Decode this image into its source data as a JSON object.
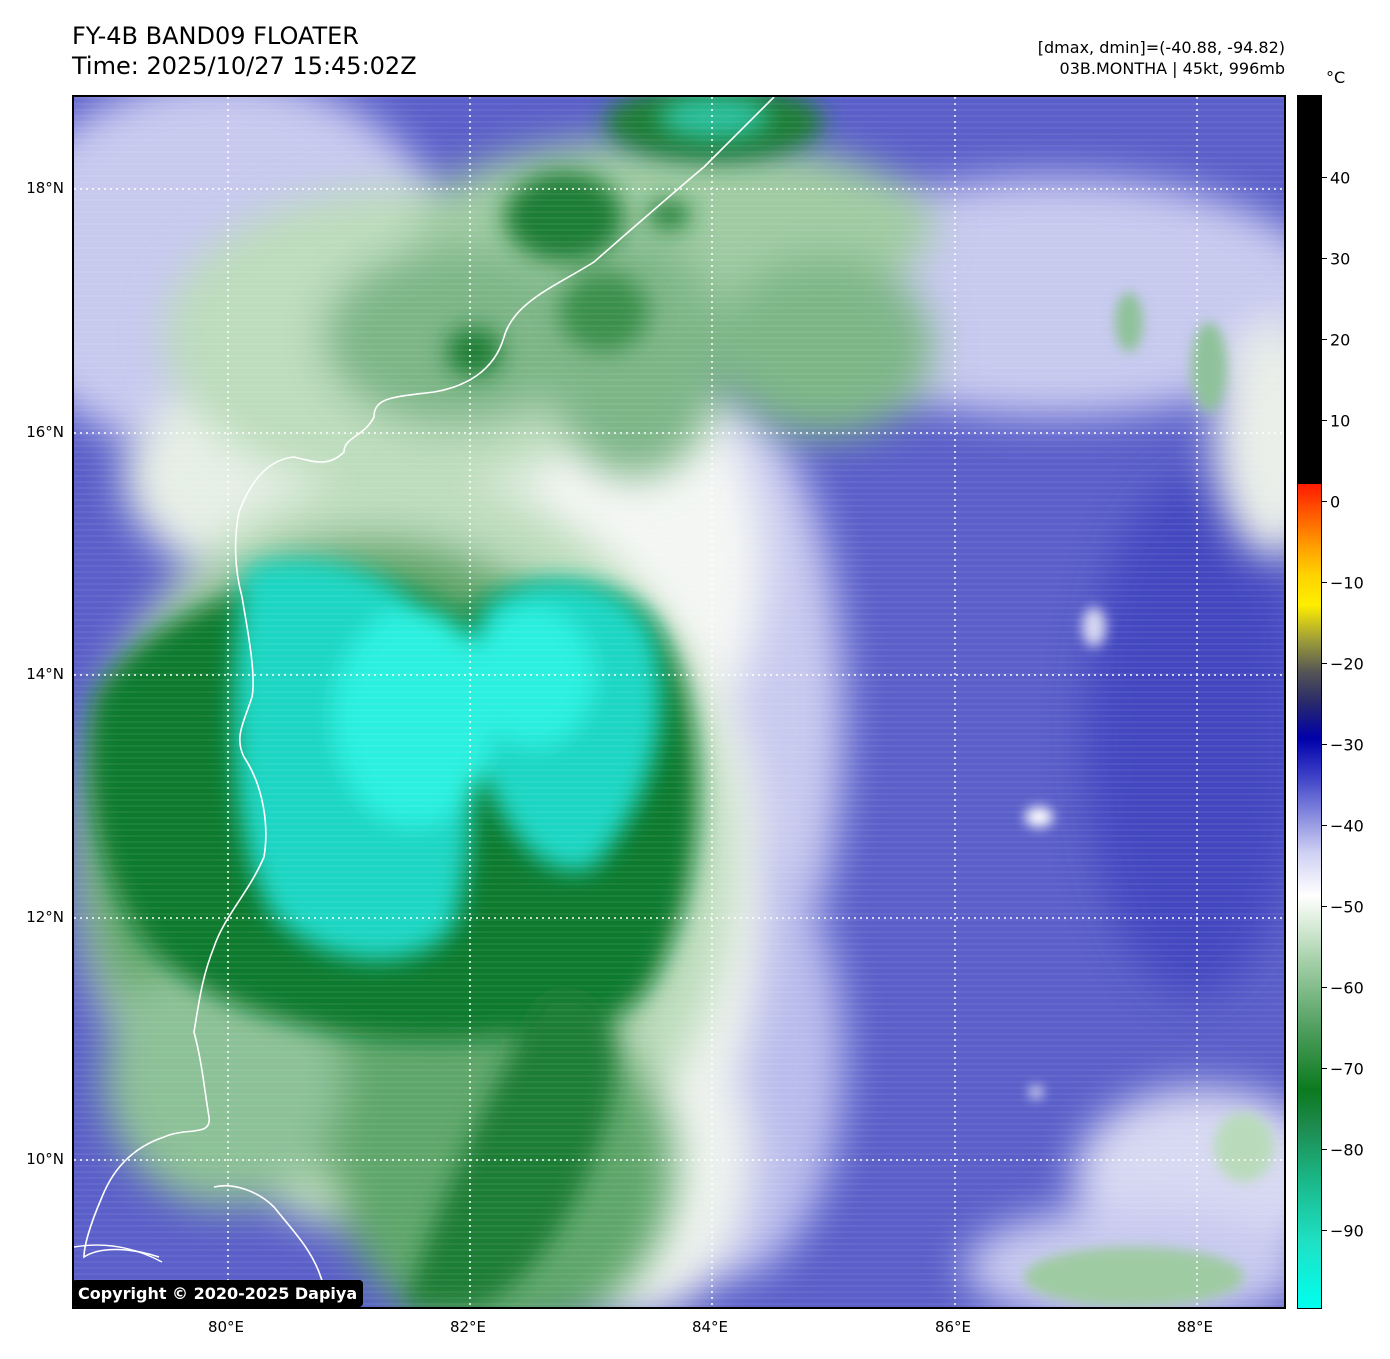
{
  "title": {
    "line1": "FY-4B BAND09 FLOATER",
    "line2": "Time: 2025/10/27 15:45:02Z"
  },
  "meta": {
    "range": "[dmax, dmin]=(-40.88, -94.82)",
    "storm": "03B.MONTHA | 45kt, 996mb"
  },
  "colorbar": {
    "unit": "°C",
    "ticks": [
      "40",
      "30",
      "20",
      "10",
      "0",
      "−10",
      "−20",
      "−30",
      "−40",
      "−50",
      "−60",
      "−70",
      "−80",
      "−90"
    ]
  },
  "map": {
    "lat_labels": [
      "18°N",
      "16°N",
      "14°N",
      "12°N",
      "10°N"
    ],
    "lon_labels": [
      "80°E",
      "82°E",
      "84°E",
      "86°E",
      "88°E"
    ],
    "grid_style": "dotted white",
    "colors": {
      "cold_top_cyan": "#19e6cf",
      "deep_green": "#0f7a2e",
      "mid_green": "#4f9e5e",
      "pale_green": "#cfe6cf",
      "white": "#ffffff",
      "lavender": "#c7c9ef",
      "blue": "#5a5fc9",
      "dark_blue": "#2d2fb8"
    }
  },
  "copyright": "Copyright © 2020-2025 Dapiya"
}
